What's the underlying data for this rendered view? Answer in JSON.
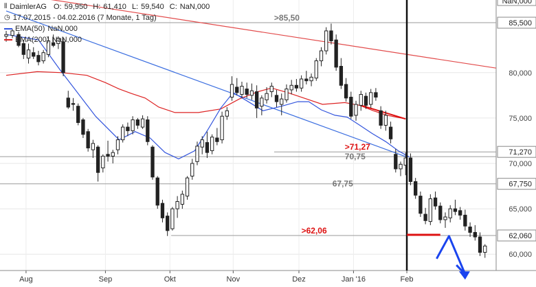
{
  "chart_data": {
    "type": "candlestick",
    "instrument": "DaimlerAG",
    "ohlc": {
      "o_label": "O:",
      "o": "59,950",
      "h_label": "H:",
      "h": "61,410",
      "l_label": "L:",
      "l": "59,540",
      "c_label": "C:",
      "c": "NaN,000"
    },
    "range": "17.07.2015 - 04.02.2016 (7 Monate, 1 Tag)",
    "indicators": [
      {
        "name": "EMA(50)",
        "value": "NaN,000",
        "color": "#3355dd"
      },
      {
        "name": "EMA(200)",
        "value": "NaN,000",
        "color": "#dd2222"
      }
    ],
    "y_ticks": [
      "80,000",
      "75,000",
      "70,000",
      "65,000",
      "60,000"
    ],
    "y_tick_values": [
      80,
      75,
      70,
      65,
      60
    ],
    "ylim": [
      58.2,
      88.0
    ],
    "x_labels": [
      "Aug",
      "Sep",
      "Okt",
      "Nov",
      "Dez",
      "Jan '16",
      "Feb"
    ],
    "x_label_positions": [
      0.6,
      7.0,
      12.2,
      17.3,
      22.6,
      27.0,
      31.3
    ],
    "xlim": [
      -1.5,
      38.5
    ],
    "last_price_tag": "NaN,000",
    "levels": [
      {
        "value": 85.5,
        "label": "85,500"
      },
      {
        "value": 71.27,
        "label": "71,270"
      },
      {
        "value": 70.75,
        "label": ""
      },
      {
        "value": 67.75,
        "label": "67,750"
      },
      {
        "value": 62.06,
        "label": "62,060"
      }
    ],
    "annotations": [
      {
        "text": ">85,50",
        "color": "#777777",
        "x": 20.6,
        "y": 85.5
      },
      {
        "text": ">71,27",
        "color": "#dd1111",
        "x": 26.3,
        "y": 71.27
      },
      {
        "text": "70,75",
        "color": "#777777",
        "x": 26.3,
        "y": 70.75
      },
      {
        "text": "67,75",
        "color": "#777777",
        "x": 25.3,
        "y": 67.75
      },
      {
        "text": ">62,06",
        "color": "#dd1111",
        "x": 22.8,
        "y": 62.06
      }
    ],
    "ema50": [
      [
        -1.0,
        84.2
      ],
      [
        1.6,
        83.6
      ],
      [
        3.4,
        80.2
      ],
      [
        6.2,
        75.2
      ],
      [
        8.1,
        72.6
      ],
      [
        9.4,
        73.5
      ],
      [
        10.6,
        72.8
      ],
      [
        11.8,
        71.2
      ],
      [
        12.9,
        70.5
      ],
      [
        14.2,
        71.4
      ],
      [
        15.3,
        73.8
      ],
      [
        16.3,
        76.1
      ],
      [
        17.3,
        77.8
      ],
      [
        18.4,
        76.9
      ],
      [
        19.7,
        75.8
      ],
      [
        21.2,
        76.3
      ],
      [
        22.5,
        76.8
      ],
      [
        23.4,
        76.8
      ],
      [
        24.4,
        75.9
      ],
      [
        25.5,
        75.3
      ],
      [
        26.5,
        75.1
      ],
      [
        27.4,
        74.3
      ],
      [
        28.5,
        73.3
      ],
      [
        29.6,
        72.4
      ],
      [
        30.6,
        71.4
      ],
      [
        31.5,
        70.7
      ]
    ],
    "ema200": [
      [
        -1.0,
        79.7
      ],
      [
        1.5,
        80.1
      ],
      [
        3.5,
        80.0
      ],
      [
        5.5,
        79.7
      ],
      [
        7.0,
        78.9
      ],
      [
        8.1,
        78.2
      ],
      [
        9.1,
        77.7
      ],
      [
        10.2,
        77.2
      ],
      [
        11.3,
        76.2
      ],
      [
        12.6,
        75.6
      ],
      [
        14.5,
        75.6
      ],
      [
        16.3,
        76.0
      ],
      [
        17.8,
        77.1
      ],
      [
        19.3,
        77.9
      ],
      [
        20.4,
        78.3
      ],
      [
        21.7,
        77.8
      ],
      [
        23.0,
        77.2
      ],
      [
        24.5,
        76.5
      ],
      [
        26.3,
        76.7
      ],
      [
        27.5,
        76.4
      ],
      [
        28.6,
        75.8
      ],
      [
        29.7,
        75.3
      ],
      [
        31.2,
        74.9
      ]
    ],
    "trendline_red": [
      [
        -1.0,
        88.8
      ],
      [
        38.5,
        80.5
      ]
    ],
    "trendline_blue": [
      [
        -1.0,
        86.8
      ],
      [
        31.3,
        70.7
      ]
    ],
    "red_marker": {
      "x0": 31.3,
      "x1": 34.0,
      "y": 62.06
    },
    "blue_arrow": [
      [
        33.7,
        59.5
      ],
      [
        34.7,
        62.0
      ],
      [
        36.0,
        57.8
      ],
      [
        35.3,
        58.8
      ]
    ],
    "candles": [
      [
        -1.0,
        84.0,
        84.6,
        83.4,
        84.2
      ],
      [
        -0.5,
        84.1,
        84.8,
        83.8,
        84.6
      ],
      [
        0.0,
        84.2,
        84.5,
        82.8,
        83.0
      ],
      [
        0.4,
        83.2,
        83.6,
        81.5,
        82.0
      ],
      [
        0.8,
        81.6,
        83.2,
        81.0,
        82.5
      ],
      [
        1.2,
        82.2,
        82.8,
        81.5,
        81.8
      ],
      [
        1.6,
        81.9,
        82.4,
        80.8,
        81.2
      ],
      [
        2.0,
        81.3,
        82.5,
        81.0,
        82.2
      ],
      [
        2.4,
        82.0,
        84.0,
        81.7,
        83.5
      ],
      [
        2.8,
        83.3,
        84.2,
        82.8,
        83.0
      ],
      [
        3.2,
        83.2,
        84.0,
        82.6,
        83.8
      ],
      [
        3.6,
        83.4,
        83.8,
        79.6,
        80.0
      ],
      [
        4.0,
        77.2,
        78.0,
        76.0,
        76.2
      ],
      [
        4.4,
        76.6,
        77.2,
        75.8,
        76.5
      ],
      [
        4.8,
        76.3,
        76.6,
        74.2,
        74.5
      ],
      [
        5.2,
        74.8,
        75.0,
        72.8,
        73.2
      ],
      [
        5.6,
        73.5,
        73.8,
        71.3,
        71.7
      ],
      [
        6.0,
        71.5,
        72.6,
        70.6,
        72.2
      ],
      [
        6.4,
        71.8,
        72.0,
        68.0,
        69.0
      ],
      [
        6.8,
        69.5,
        71.0,
        69.0,
        70.8
      ],
      [
        7.2,
        71.0,
        72.5,
        70.2,
        70.8
      ],
      [
        7.6,
        70.8,
        71.5,
        70.0,
        71.2
      ],
      [
        8.0,
        71.5,
        73.0,
        71.0,
        72.6
      ],
      [
        8.4,
        72.6,
        74.3,
        72.3,
        74.0
      ],
      [
        8.8,
        74.0,
        74.5,
        73.0,
        73.6
      ],
      [
        9.2,
        73.6,
        75.2,
        73.2,
        74.8
      ],
      [
        9.6,
        74.8,
        75.0,
        73.8,
        74.2
      ],
      [
        10.0,
        74.0,
        75.3,
        73.8,
        74.9
      ],
      [
        10.4,
        74.8,
        75.2,
        72.0,
        72.4
      ],
      [
        10.8,
        71.8,
        72.0,
        68.2,
        68.5
      ],
      [
        11.2,
        68.4,
        68.6,
        65.0,
        65.4
      ],
      [
        11.6,
        65.6,
        66.0,
        63.5,
        64.0
      ],
      [
        12.0,
        64.2,
        64.6,
        62.0,
        62.6
      ],
      [
        12.4,
        62.8,
        65.2,
        62.6,
        65.0
      ],
      [
        12.8,
        65.0,
        66.4,
        64.0,
        65.8
      ],
      [
        13.2,
        65.5,
        67.0,
        65.0,
        66.6
      ],
      [
        13.6,
        66.4,
        68.6,
        66.0,
        68.4
      ],
      [
        14.0,
        68.6,
        70.5,
        68.2,
        70.0
      ],
      [
        14.4,
        70.2,
        72.4,
        69.8,
        71.9
      ],
      [
        14.8,
        71.8,
        73.0,
        71.0,
        72.6
      ],
      [
        15.2,
        72.3,
        73.5,
        70.6,
        71.2
      ],
      [
        15.6,
        71.4,
        73.2,
        71.0,
        72.9
      ],
      [
        16.0,
        72.8,
        73.9,
        72.0,
        72.4
      ],
      [
        16.4,
        72.6,
        75.7,
        72.2,
        75.2
      ],
      [
        16.8,
        75.2,
        76.2,
        74.8,
        75.8
      ],
      [
        17.2,
        77.3,
        79.6,
        76.9,
        78.7
      ],
      [
        17.6,
        78.4,
        79.4,
        77.5,
        77.8
      ],
      [
        18.0,
        77.6,
        79.0,
        77.2,
        78.5
      ],
      [
        18.4,
        78.2,
        78.9,
        77.2,
        77.6
      ],
      [
        18.8,
        77.5,
        78.8,
        77.0,
        78.0
      ],
      [
        19.2,
        77.9,
        78.6,
        75.0,
        76.1
      ],
      [
        19.6,
        76.3,
        77.5,
        75.3,
        77.2
      ],
      [
        20.0,
        77.0,
        78.4,
        76.6,
        77.7
      ],
      [
        20.4,
        77.9,
        78.9,
        77.3,
        78.5
      ],
      [
        20.8,
        77.5,
        78.1,
        76.2,
        76.8
      ],
      [
        21.2,
        76.5,
        77.7,
        75.3,
        77.1
      ],
      [
        21.6,
        77.0,
        78.7,
        76.7,
        78.2
      ],
      [
        22.0,
        78.1,
        79.2,
        77.6,
        78.6
      ],
      [
        22.4,
        78.6,
        79.3,
        77.9,
        78.3
      ],
      [
        22.8,
        78.3,
        79.7,
        77.9,
        79.3
      ],
      [
        23.2,
        79.3,
        80.2,
        78.7,
        79.1
      ],
      [
        23.6,
        79.1,
        79.9,
        78.5,
        79.5
      ],
      [
        24.0,
        79.4,
        81.6,
        79.1,
        81.3
      ],
      [
        24.4,
        81.3,
        82.8,
        80.7,
        82.4
      ],
      [
        24.8,
        82.4,
        85.0,
        82.0,
        84.6
      ],
      [
        25.2,
        84.6,
        85.4,
        83.1,
        83.5
      ],
      [
        25.6,
        83.6,
        84.2,
        80.2,
        80.6
      ],
      [
        26.0,
        80.7,
        81.6,
        78.2,
        78.6
      ],
      [
        26.4,
        78.7,
        79.4,
        76.8,
        77.2
      ],
      [
        26.8,
        77.3,
        77.9,
        74.9,
        75.2
      ],
      [
        27.2,
        75.3,
        76.9,
        74.7,
        76.5
      ],
      [
        27.6,
        76.4,
        78.0,
        75.8,
        77.6
      ],
      [
        28.0,
        77.4,
        77.8,
        76.0,
        76.4
      ],
      [
        28.4,
        76.5,
        78.2,
        76.1,
        77.8
      ],
      [
        28.8,
        77.8,
        78.3,
        76.9,
        77.3
      ],
      [
        29.2,
        75.8,
        76.3,
        73.8,
        74.2
      ],
      [
        29.6,
        74.2,
        75.8,
        73.6,
        75.3
      ],
      [
        30.0,
        74.0,
        74.6,
        72.2,
        72.7
      ],
      [
        30.4,
        71.0,
        71.6,
        69.0,
        69.4
      ],
      [
        30.8,
        69.4,
        70.2,
        68.6,
        69.9
      ],
      [
        31.2,
        69.8,
        71.2,
        68.7,
        70.6
      ],
      [
        31.6,
        70.6,
        71.1,
        67.6,
        68.0
      ],
      [
        32.0,
        68.0,
        68.4,
        66.1,
        66.5
      ],
      [
        32.4,
        66.4,
        66.9,
        64.1,
        64.5
      ],
      [
        32.8,
        64.4,
        65.1,
        63.3,
        63.7
      ],
      [
        33.2,
        63.6,
        66.6,
        63.2,
        66.1
      ],
      [
        33.6,
        66.2,
        66.9,
        64.9,
        65.3
      ],
      [
        34.0,
        65.3,
        65.7,
        63.4,
        63.8
      ],
      [
        34.4,
        63.8,
        64.6,
        62.9,
        64.1
      ],
      [
        34.8,
        64.0,
        65.4,
        63.5,
        65.0
      ],
      [
        35.2,
        65.0,
        66.0,
        64.3,
        64.7
      ],
      [
        35.6,
        64.8,
        65.2,
        63.8,
        64.3
      ],
      [
        36.0,
        64.3,
        64.9,
        62.6,
        63.1
      ],
      [
        36.4,
        63.0,
        63.5,
        61.9,
        62.4
      ],
      [
        36.8,
        62.4,
        63.2,
        61.5,
        61.9
      ],
      [
        37.2,
        61.9,
        62.4,
        59.8,
        60.2
      ],
      [
        37.6,
        60.2,
        61.1,
        59.6,
        60.9
      ]
    ]
  }
}
